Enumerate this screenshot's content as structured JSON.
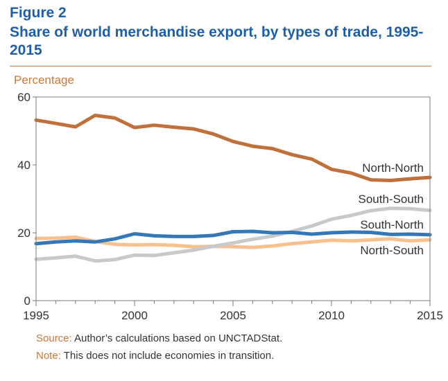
{
  "figure": {
    "label": "Figure 2",
    "title": "Share of world merchandise export, by types of trade, 1995-2015"
  },
  "notes": {
    "source_key": "Source:",
    "source_text": " Author’s calculations based on UNCTADStat.",
    "note_key": "Note:",
    "note_text": " This does not include economies in transition."
  },
  "colors": {
    "title": "#1f5ea8",
    "accent": "#c9773a",
    "north_north": "#c0703a",
    "south_south": "#c8c9cb",
    "south_north": "#3478b8",
    "north_south": "#f6c08f"
  },
  "chart_data": {
    "type": "line",
    "ylabel": "Percentage",
    "xlabel": "",
    "xlim": [
      1995,
      2015
    ],
    "ylim": [
      0,
      60
    ],
    "xticks": [
      1995,
      2000,
      2005,
      2010,
      2015
    ],
    "yticks": [
      0,
      20,
      40,
      60
    ],
    "x": [
      1995,
      1996,
      1997,
      1998,
      1999,
      2000,
      2001,
      2002,
      2003,
      2004,
      2005,
      2006,
      2007,
      2008,
      2009,
      2010,
      2011,
      2012,
      2013,
      2014,
      2015
    ],
    "series": [
      {
        "name": "North-North",
        "color_key": "north_north",
        "values": [
          53.2,
          52.2,
          51.2,
          54.6,
          53.8,
          51.0,
          51.7,
          51.1,
          50.6,
          49.1,
          46.9,
          45.5,
          44.8,
          43.0,
          41.7,
          38.7,
          37.6,
          35.6,
          35.4,
          35.9,
          36.3
        ]
      },
      {
        "name": "South-South",
        "color_key": "south_south",
        "values": [
          12.2,
          12.6,
          13.1,
          11.7,
          12.1,
          13.4,
          13.3,
          14.1,
          14.9,
          16.0,
          17.0,
          18.1,
          19.0,
          20.4,
          22.0,
          24.0,
          25.1,
          26.5,
          27.2,
          27.1,
          26.6
        ]
      },
      {
        "name": "South-North",
        "color_key": "south_north",
        "values": [
          16.8,
          17.3,
          17.6,
          17.3,
          18.2,
          19.7,
          19.1,
          18.9,
          18.9,
          19.2,
          20.3,
          20.4,
          20.0,
          20.1,
          19.6,
          20.0,
          20.2,
          20.1,
          19.5,
          19.6,
          19.4
        ]
      },
      {
        "name": "North-South",
        "color_key": "north_south",
        "values": [
          18.3,
          18.4,
          18.7,
          17.4,
          16.6,
          16.4,
          16.5,
          16.3,
          15.9,
          16.0,
          15.9,
          15.7,
          16.1,
          16.8,
          17.3,
          17.8,
          17.6,
          17.9,
          18.2,
          17.6,
          17.9
        ]
      }
    ]
  }
}
